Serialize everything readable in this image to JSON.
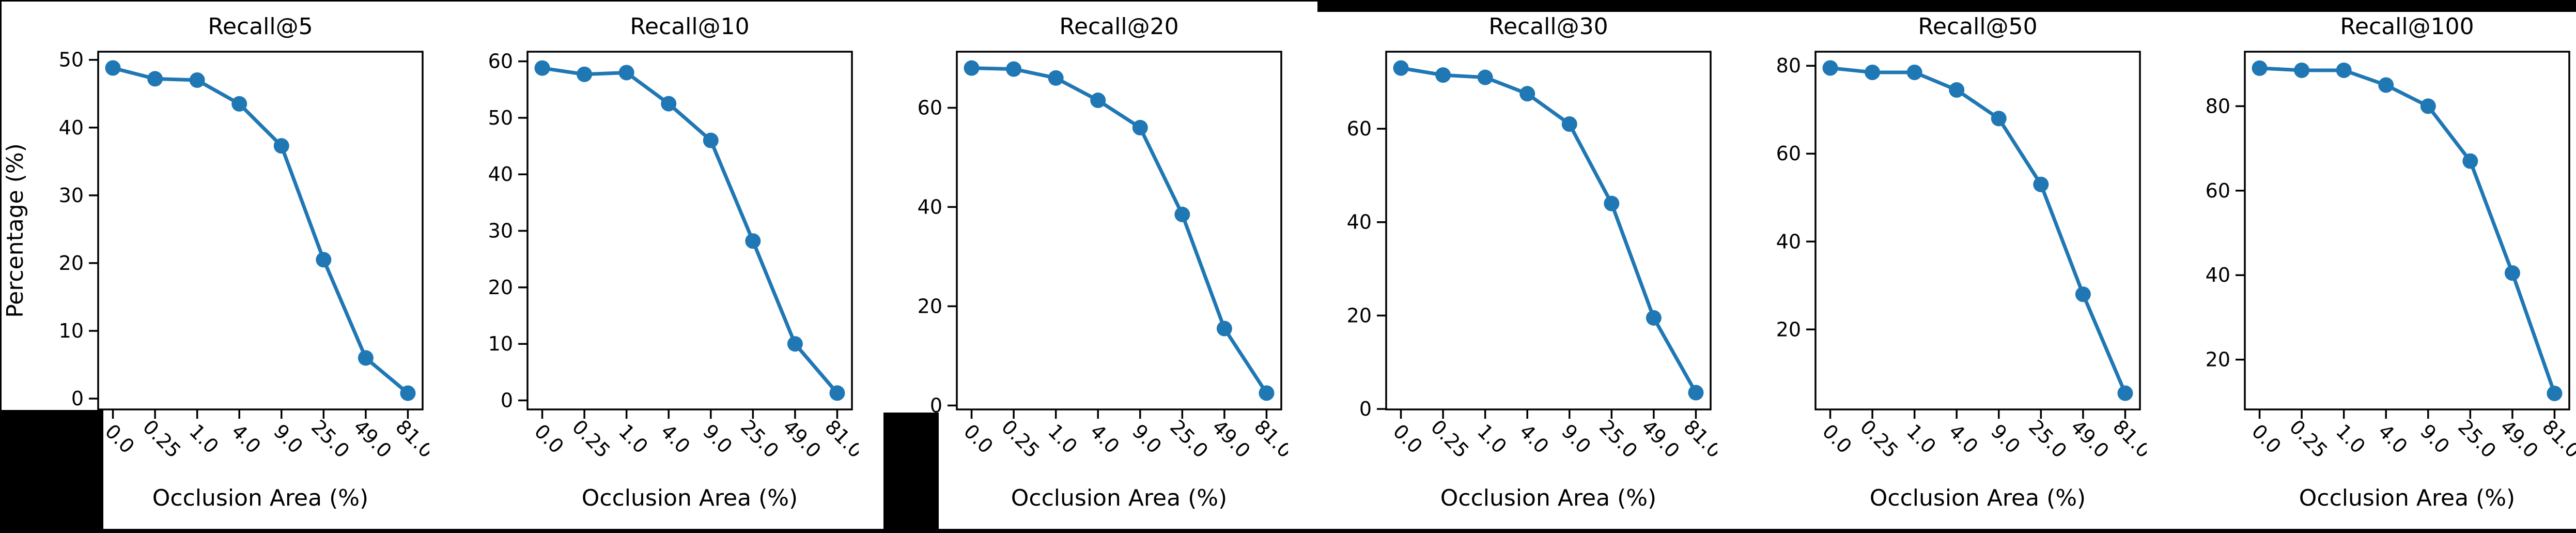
{
  "figure": {
    "xlabel": "Occlusion Area (%)",
    "shared_ylabel": "Percentage (%)",
    "line_color": "#1f77b4",
    "spine_color": "#000000",
    "background": "#ffffff",
    "x_categories": [
      "0.0",
      "0.25",
      "1.0",
      "4.0",
      "9.0",
      "25.0",
      "49.0",
      "81.0"
    ]
  },
  "chart_data": [
    {
      "type": "line",
      "title": "Recall@5",
      "xlabel": "Occlusion Area (%)",
      "ylabel": "Percentage (%)",
      "categories": [
        "0.0",
        "0.25",
        "1.0",
        "4.0",
        "9.0",
        "25.0",
        "49.0",
        "81.0"
      ],
      "values": [
        48.8,
        47.2,
        47.0,
        43.5,
        37.3,
        20.5,
        6.0,
        0.8
      ],
      "yticks": [
        0,
        10,
        20,
        30,
        40,
        50
      ],
      "ylim": [
        -1.6,
        51.2
      ],
      "grid": false,
      "legend": null
    },
    {
      "type": "line",
      "title": "Recall@10",
      "xlabel": "Occlusion Area (%)",
      "ylabel": "",
      "categories": [
        "0.0",
        "0.25",
        "1.0",
        "4.0",
        "9.0",
        "25.0",
        "49.0",
        "81.0"
      ],
      "values": [
        58.8,
        57.7,
        58.0,
        52.5,
        46.0,
        28.2,
        10.0,
        1.3
      ],
      "yticks": [
        0,
        10,
        20,
        30,
        40,
        50,
        60
      ],
      "ylim": [
        -1.6,
        61.7
      ],
      "grid": false,
      "legend": null
    },
    {
      "type": "line",
      "title": "Recall@20",
      "xlabel": "Occlusion Area (%)",
      "ylabel": "",
      "categories": [
        "0.0",
        "0.25",
        "1.0",
        "4.0",
        "9.0",
        "25.0",
        "49.0",
        "81.0"
      ],
      "values": [
        68.0,
        67.8,
        66.0,
        61.5,
        56.0,
        38.5,
        15.5,
        2.5
      ],
      "yticks": [
        0,
        20,
        40,
        60
      ],
      "ylim": [
        -0.8,
        71.3
      ],
      "grid": false,
      "legend": null
    },
    {
      "type": "line",
      "title": "Recall@30",
      "xlabel": "Occlusion Area (%)",
      "ylabel": "",
      "categories": [
        "0.0",
        "0.25",
        "1.0",
        "4.0",
        "9.0",
        "25.0",
        "49.0",
        "81.0"
      ],
      "values": [
        73.0,
        71.5,
        71.0,
        67.5,
        61.0,
        44.0,
        19.5,
        3.5
      ],
      "yticks": [
        0,
        20,
        40,
        60
      ],
      "ylim": [
        -0.1,
        76.5
      ],
      "grid": false,
      "legend": null
    },
    {
      "type": "line",
      "title": "Recall@50",
      "xlabel": "Occlusion Area (%)",
      "ylabel": "",
      "categories": [
        "0.0",
        "0.25",
        "1.0",
        "4.0",
        "9.0",
        "25.0",
        "49.0",
        "81.0"
      ],
      "values": [
        79.5,
        78.5,
        78.5,
        74.5,
        68.0,
        53.0,
        28.0,
        5.5
      ],
      "yticks": [
        20,
        40,
        60,
        80
      ],
      "ylim": [
        1.8,
        83.2
      ],
      "grid": false,
      "legend": null
    },
    {
      "type": "line",
      "title": "Recall@100",
      "xlabel": "Occlusion Area (%)",
      "ylabel": "",
      "categories": [
        "0.0",
        "0.25",
        "1.0",
        "4.0",
        "9.0",
        "25.0",
        "49.0",
        "81.0"
      ],
      "values": [
        89.0,
        88.5,
        88.5,
        85.0,
        80.0,
        67.0,
        40.5,
        12.0
      ],
      "yticks": [
        20,
        40,
        60,
        80
      ],
      "ylim": [
        8.2,
        92.9
      ],
      "grid": false,
      "legend": null
    }
  ]
}
